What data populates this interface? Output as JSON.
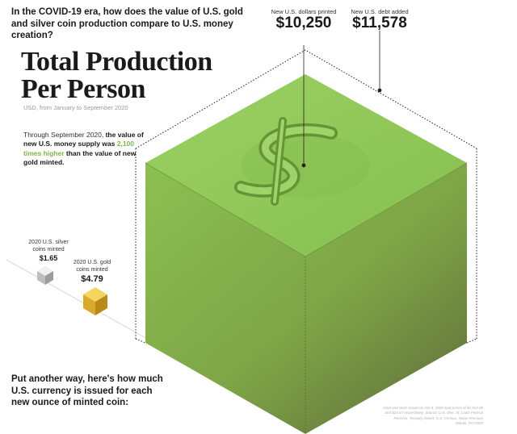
{
  "header": {
    "question": "In the COVID-19 era, how does the value of U.S. gold and silver coin production compare to U.S. money creation?"
  },
  "title": {
    "line1": "Total Production",
    "line2": "Per Person"
  },
  "subtitle": "USD, from January to September 2020",
  "intro": {
    "prefix": "Through September 2020, ",
    "bold1": "the value of new U.S. money supply was ",
    "highlight": "2,100 times higher",
    "bold2": " than the value of new gold minted."
  },
  "stats": {
    "printed": {
      "label": "New U.S. dollars printed",
      "value": "$10,250"
    },
    "debt": {
      "label": "New U.S. debt added",
      "value": "$11,578"
    }
  },
  "coins": {
    "silver": {
      "label_line1": "2020 U.S. silver",
      "label_line2": "coins minted",
      "value": "$1.65"
    },
    "gold": {
      "label_line1": "2020 U.S. gold",
      "label_line2": "coins minted",
      "value": "$4.79"
    }
  },
  "footer": {
    "another": "Put another way, here's how much U.S. currency is issued for each new ounce of minted coin:",
    "source": "Gold and silver based on Oct 5, 2020 spot prices of $1,913.96 and $24.47 respectively. Source: U.S. Mint, St. Louis Federal Reserve, Treasury Direct, U.S. Census, Texas Precious Metals, Oct 2020"
  },
  "colors": {
    "cube_top": "#8fc75a",
    "cube_front": "#86b84d",
    "highlight": "#7ab648",
    "gold": "#e0b636",
    "silver": "#c9c9c9"
  }
}
